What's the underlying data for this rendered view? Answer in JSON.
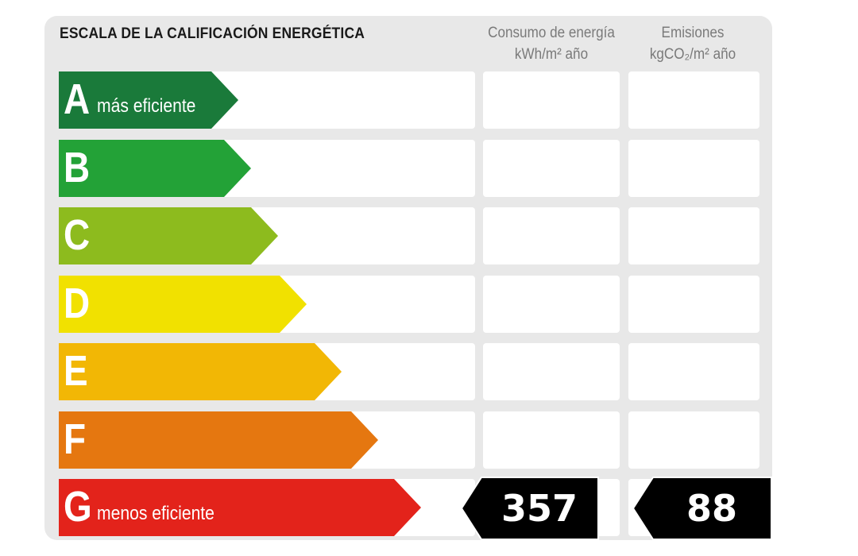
{
  "title": "ESCALA DE LA CALIFICACIÓN ENERGÉTICA",
  "columns": {
    "consumo": {
      "line1": "Consumo de energía",
      "line2": "kWh/m² año"
    },
    "emisiones": {
      "line1": "Emisiones",
      "line2": "kgCO₂/m² año"
    }
  },
  "ratings": [
    {
      "letter": "A",
      "label": "más eficiente",
      "color": "#1a7a3a"
    },
    {
      "letter": "B",
      "label": "",
      "color": "#23a237"
    },
    {
      "letter": "C",
      "label": "",
      "color": "#8dbb1e"
    },
    {
      "letter": "D",
      "label": "",
      "color": "#f1e100"
    },
    {
      "letter": "E",
      "label": "",
      "color": "#f2b705"
    },
    {
      "letter": "F",
      "label": "",
      "color": "#e57710"
    },
    {
      "letter": "G",
      "label": "menos eficiente",
      "color": "#e3231b"
    }
  ],
  "values": {
    "consumo": "357",
    "emisiones": "88",
    "row": "G"
  }
}
